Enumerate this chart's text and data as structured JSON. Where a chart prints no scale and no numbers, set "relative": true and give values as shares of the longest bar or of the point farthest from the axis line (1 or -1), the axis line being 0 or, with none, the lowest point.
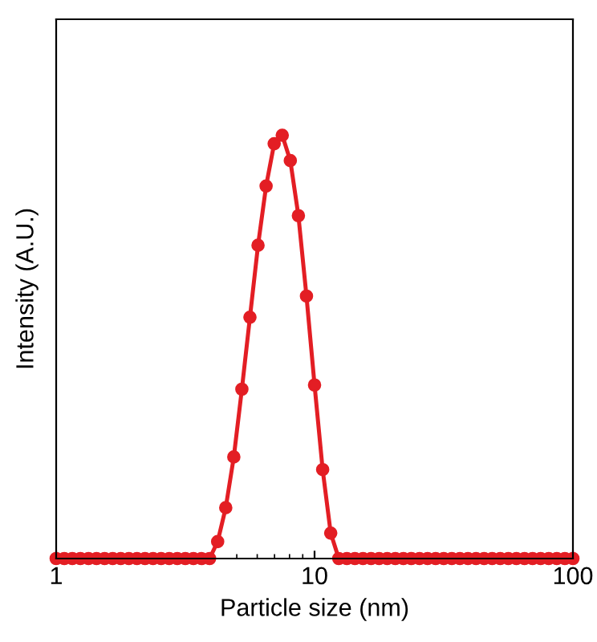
{
  "chart_data": {
    "type": "line",
    "xlabel": "Particle size (nm)",
    "ylabel": "Intensity (A.U.)",
    "relative": true,
    "log": "x",
    "xlim": [
      1,
      100
    ],
    "xticks": [
      1,
      10,
      100
    ],
    "tick_labels": "x",
    "grid": false,
    "legend": false,
    "marker": "circle",
    "line_style": "solid",
    "x": [
      1.0,
      1.075,
      1.155,
      1.241,
      1.334,
      1.433,
      1.54,
      1.655,
      1.778,
      1.911,
      2.054,
      2.207,
      2.371,
      2.548,
      2.738,
      2.943,
      3.162,
      3.398,
      3.652,
      3.924,
      4.217,
      4.532,
      4.87,
      5.233,
      5.623,
      6.043,
      6.494,
      6.978,
      7.499,
      8.058,
      8.66,
      9.306,
      10.0,
      10.75,
      11.55,
      12.41,
      13.34,
      14.33,
      15.4,
      16.55,
      17.78,
      19.11,
      20.54,
      22.07,
      23.71,
      25.48,
      27.38,
      29.43,
      31.62,
      33.98,
      36.52,
      39.24,
      42.17,
      45.32,
      48.7,
      52.33,
      56.23,
      60.43,
      64.94,
      69.78,
      74.99,
      80.58,
      86.6,
      93.06,
      100.0
    ],
    "series": [
      {
        "color": "#e31e24",
        "values": [
          0,
          0,
          0,
          0,
          0,
          0,
          0,
          0,
          0,
          0,
          0,
          0,
          0,
          0,
          0,
          0,
          0,
          0,
          0,
          0,
          0.04,
          0.12,
          0.24,
          0.4,
          0.57,
          0.74,
          0.88,
          0.98,
          1,
          0.94,
          0.81,
          0.62,
          0.41,
          0.21,
          0.06,
          0,
          0,
          0,
          0,
          0,
          0,
          0,
          0,
          0,
          0,
          0,
          0,
          0,
          0,
          0,
          0,
          0,
          0,
          0,
          0,
          0,
          0,
          0,
          0,
          0,
          0,
          0,
          0,
          0,
          0
        ]
      }
    ]
  }
}
